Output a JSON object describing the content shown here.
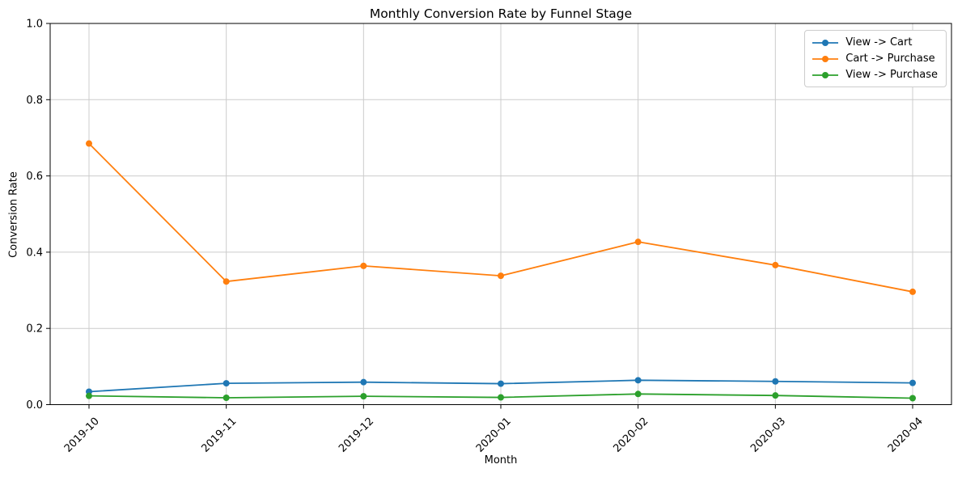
{
  "chart_data": {
    "type": "line",
    "title": "Monthly Conversion Rate by Funnel Stage",
    "xlabel": "Month",
    "ylabel": "Conversion Rate",
    "x": [
      "2019-10",
      "2019-11",
      "2019-12",
      "2020-01",
      "2020-02",
      "2020-03",
      "2020-04"
    ],
    "series": [
      {
        "name": "View -> Cart",
        "color": "#1f77b4",
        "values": [
          0.034,
          0.056,
          0.059,
          0.055,
          0.064,
          0.061,
          0.057
        ]
      },
      {
        "name": "Cart -> Purchase",
        "color": "#ff7f0e",
        "values": [
          0.685,
          0.323,
          0.364,
          0.338,
          0.427,
          0.366,
          0.296
        ]
      },
      {
        "name": "View -> Purchase",
        "color": "#2ca02c",
        "values": [
          0.023,
          0.018,
          0.022,
          0.019,
          0.028,
          0.024,
          0.017
        ]
      }
    ],
    "ylim": [
      0.0,
      1.0
    ],
    "yticks": [
      0.0,
      0.2,
      0.4,
      0.6,
      0.8,
      1.0
    ],
    "ytick_labels": [
      "0.0",
      "0.2",
      "0.4",
      "0.6",
      "0.8",
      "1.0"
    ],
    "grid": true,
    "legend_position": "upper right",
    "x_tick_rotation_deg": 45,
    "grid_color": "#cccccc",
    "spine_color": "#000000"
  }
}
